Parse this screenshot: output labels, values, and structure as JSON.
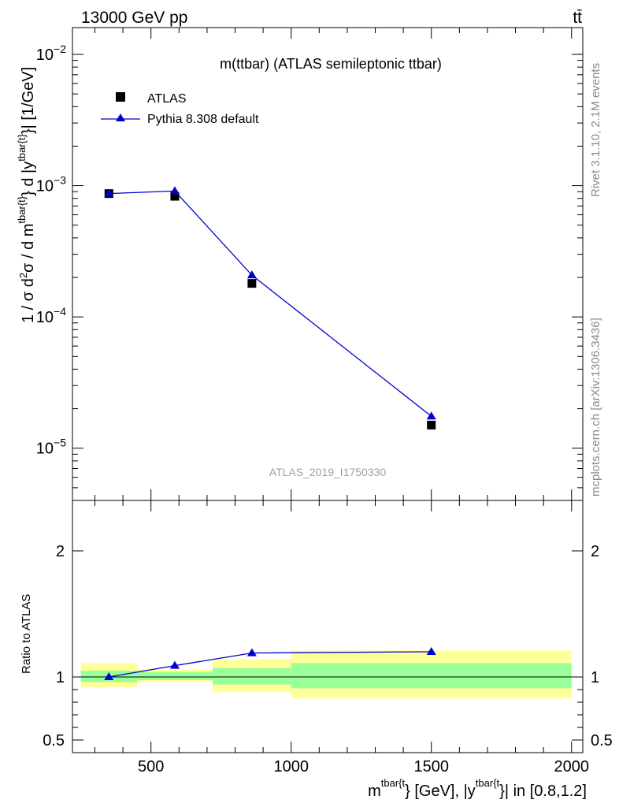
{
  "header": {
    "energy_label": "13000 GeV pp",
    "process_label": "tt̄"
  },
  "side_labels": {
    "rivet": "Rivet 3.1.10,  2.1M events",
    "mcplots": "mcplots.cern.ch [arXiv:1306.3436]"
  },
  "chart_data": [
    {
      "type": "scatter",
      "panel": "main",
      "title": "m(ttbar) (ATLAS semileptonic ttbar)",
      "watermark": "ATLAS_2019_I1750330",
      "ylabel": "1 / σ d²σ / d m^{tbar{t}} d |y^{tbar{t}}| [1/GeV]",
      "yscale": "log",
      "xlim": [
        220,
        2040
      ],
      "ylim": [
        4e-06,
        0.016
      ],
      "y_ticks": [
        {
          "value": 1e-05,
          "base": "10",
          "exp": "−5"
        },
        {
          "value": 0.0001,
          "base": "10",
          "exp": "−4"
        },
        {
          "value": 0.001,
          "base": "10",
          "exp": "−3"
        },
        {
          "value": 0.01,
          "base": "10",
          "exp": "−2"
        }
      ],
      "legend_position": "top-left",
      "series": [
        {
          "name": "ATLAS",
          "marker": "square",
          "color": "#000000",
          "x": [
            350,
            585,
            860,
            1500
          ],
          "y": [
            0.00087,
            0.00083,
            0.00018,
            1.5e-05
          ]
        },
        {
          "name": "Pythia 8.308 default",
          "marker": "triangle",
          "color": "#0000cc",
          "x": [
            350,
            585,
            860,
            1500
          ],
          "y": [
            0.00087,
            0.00091,
            0.000208,
            1.75e-05
          ]
        }
      ]
    },
    {
      "type": "line",
      "panel": "ratio",
      "ylabel": "Ratio to ATLAS",
      "xlabel": "m^{tbar{t}} [GeV], |y^{tbar{t}}| in [0.8,1.2]",
      "xlim": [
        220,
        2040
      ],
      "ylim": [
        0.4,
        2.4
      ],
      "x_ticks": [
        500,
        1000,
        1500,
        2000
      ],
      "y_ticks": [
        {
          "value": 0.5,
          "label": "0.5"
        },
        {
          "value": 1,
          "label": "1"
        },
        {
          "value": 2,
          "label": "2"
        }
      ],
      "bands": [
        {
          "x_low": 250,
          "x_high": 450,
          "green_low": 0.96,
          "green_high": 1.05,
          "yellow_low": 0.92,
          "yellow_high": 1.11
        },
        {
          "x_low": 450,
          "x_high": 720,
          "green_low": 0.975,
          "green_high": 1.04,
          "yellow_low": 0.96,
          "yellow_high": 1.06
        },
        {
          "x_low": 720,
          "x_high": 1000,
          "green_low": 0.94,
          "green_high": 1.07,
          "yellow_low": 0.88,
          "yellow_high": 1.14
        },
        {
          "x_low": 1000,
          "x_high": 2000,
          "green_low": 0.91,
          "green_high": 1.11,
          "yellow_low": 0.83,
          "yellow_high": 1.21
        }
      ],
      "series": [
        {
          "name": "Pythia 8.308 default",
          "color": "#0000cc",
          "x": [
            350,
            585,
            860,
            1500
          ],
          "y": [
            1.0,
            1.09,
            1.19,
            1.2
          ],
          "err": [
            0,
            0,
            0,
            0.025
          ]
        }
      ]
    }
  ]
}
